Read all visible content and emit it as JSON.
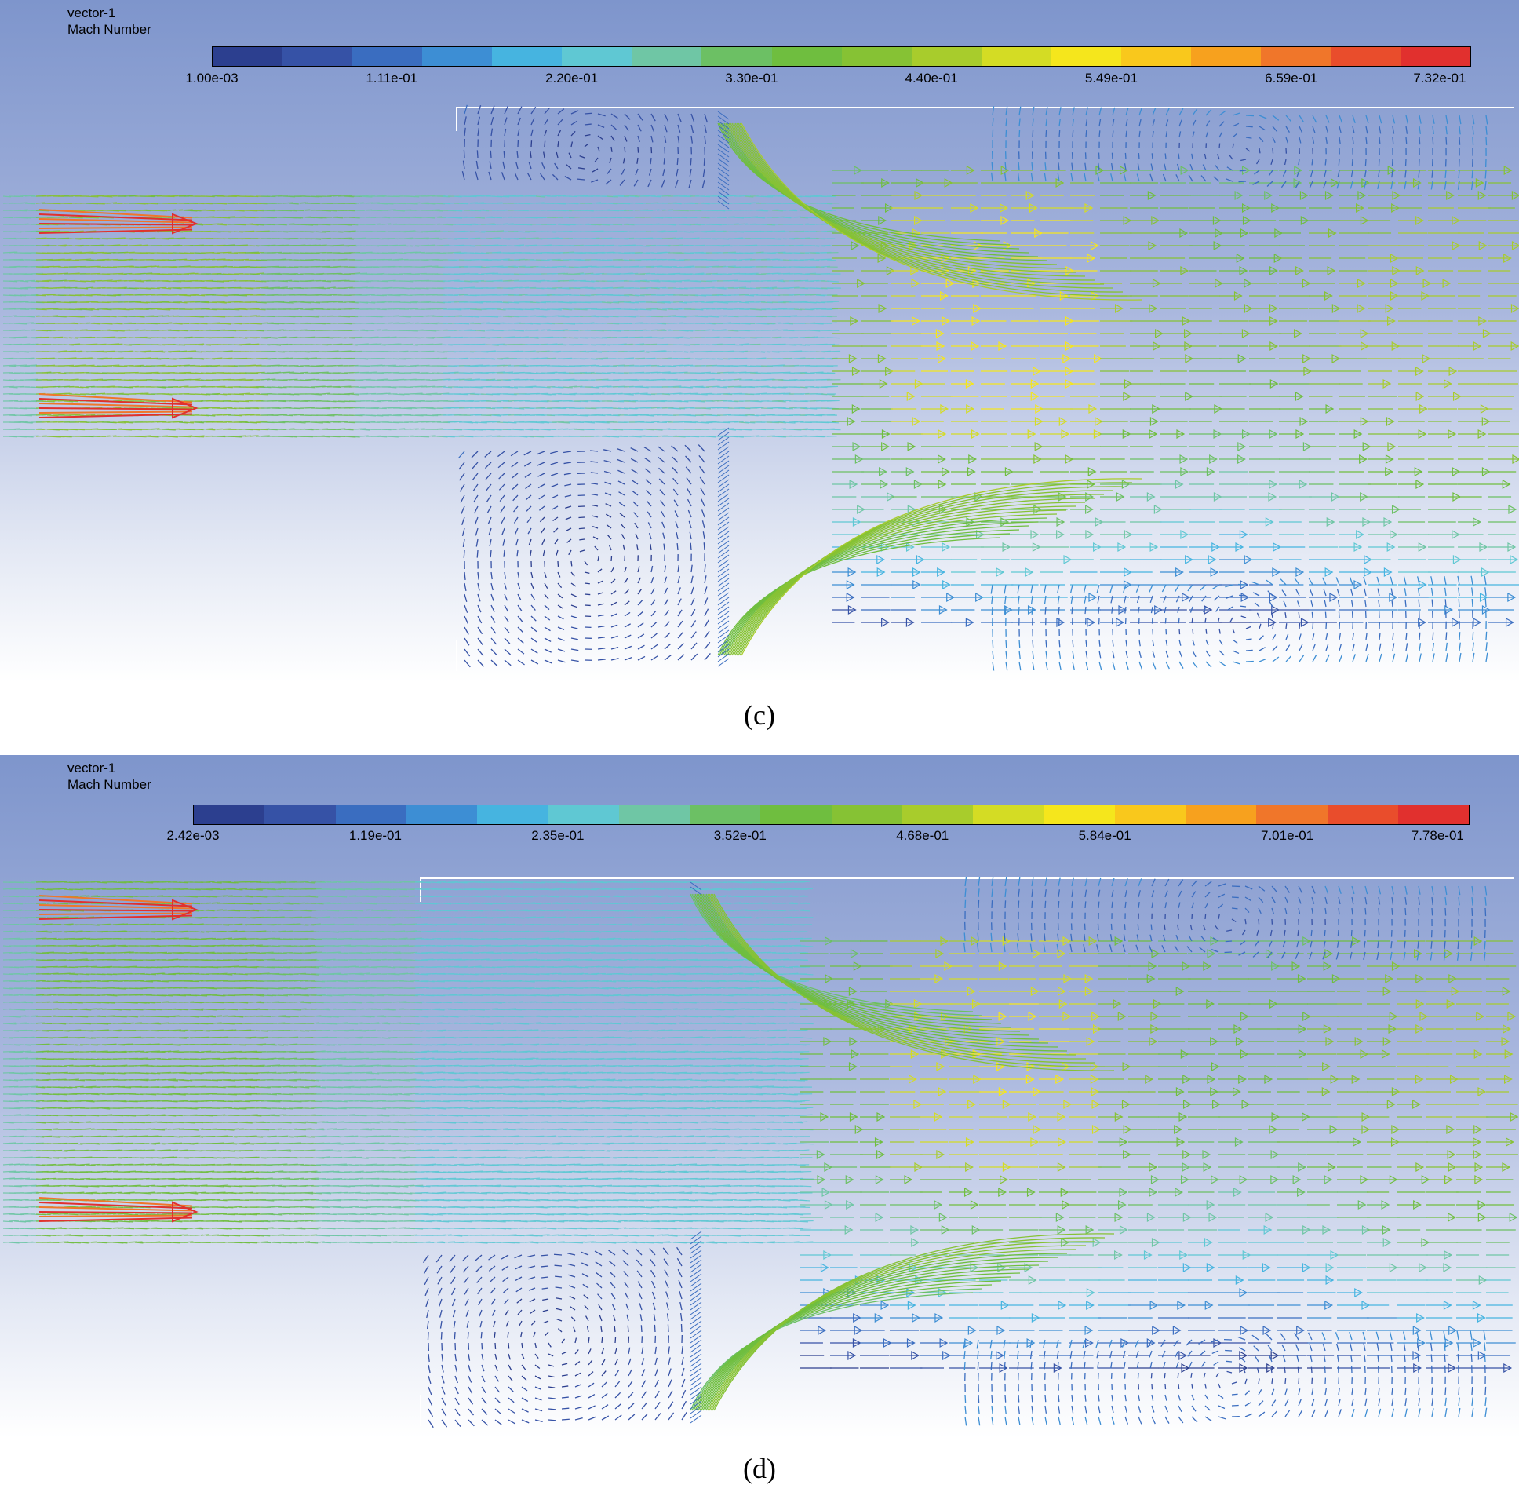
{
  "colormap": [
    "#2c3f8f",
    "#3652a6",
    "#3a6dc0",
    "#3d8ed4",
    "#46b4e0",
    "#5fc8d3",
    "#6fc6a5",
    "#6cc064",
    "#6fbe3f",
    "#86c234",
    "#a8cc2c",
    "#d4dc24",
    "#f5e61c",
    "#f9c81c",
    "#f7a11e",
    "#f0762a",
    "#e94d2c",
    "#e1302e"
  ],
  "panels": [
    {
      "label": "(c)",
      "vector_name": "vector-1",
      "quantity": "Mach Number",
      "colorbar_ticks": [
        "1.00e-03",
        "1.11e-01",
        "2.20e-01",
        "3.30e-01",
        "4.40e-01",
        "5.49e-01",
        "6.59e-01",
        "7.32e-01"
      ],
      "range": [
        0.001,
        0.732
      ],
      "peak_mach": 0.7
    },
    {
      "label": "(d)",
      "vector_name": "vector-1",
      "quantity": "Mach Number",
      "colorbar_ticks": [
        "2.42e-03",
        "1.19e-01",
        "2.35e-01",
        "3.52e-01",
        "4.68e-01",
        "5.84e-01",
        "7.01e-01",
        "7.78e-01"
      ],
      "range": [
        0.00242,
        0.778
      ],
      "peak_mach": 0.74
    }
  ]
}
